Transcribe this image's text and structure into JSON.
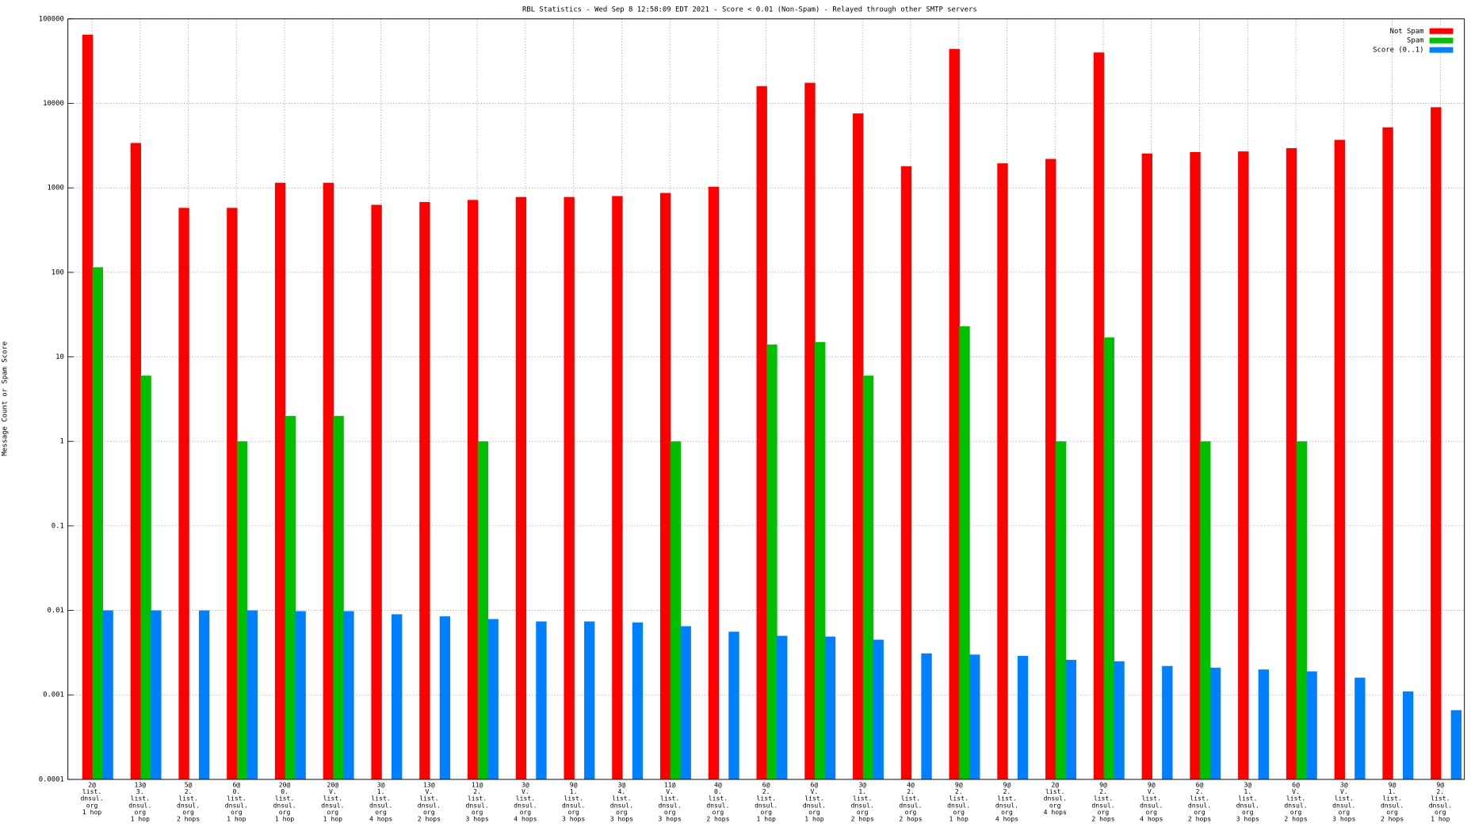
{
  "chart_data": {
    "type": "bar",
    "title": "RBL Statistics - Wed Sep  8 12:58:09 EDT 2021 - Score < 0.01 (Non-Spam) - Relayed through other SMTP servers",
    "y_label": "Message Count or Spam Score",
    "yscale": "log",
    "grid": true,
    "legend": "upper right",
    "ylim": [
      0.0001,
      100000
    ],
    "yticks": [
      100000,
      10000,
      1000,
      100,
      10,
      1,
      0.1,
      0.01,
      0.001,
      0.0001
    ],
    "categories": [
      [
        "2@",
        "list.",
        "dnsul.",
        "org",
        "1 hop"
      ],
      [
        "13@",
        "3.",
        "list.",
        "dnsul.",
        "org",
        "1 hop"
      ],
      [
        "5@",
        "2.",
        "list.",
        "dnsul.",
        "org",
        "2 hops"
      ],
      [
        "6@",
        "0.",
        "list.",
        "dnsul.",
        "org",
        "1 hop"
      ],
      [
        "20@",
        "0.",
        "list.",
        "dnsul.",
        "org",
        "1 hop"
      ],
      [
        "20@",
        "V.",
        "list.",
        "dnsul.",
        "org",
        "1 hop"
      ],
      [
        "3@",
        "1.",
        "list.",
        "dnsul.",
        "org",
        "4 hops"
      ],
      [
        "13@",
        "V.",
        "list.",
        "dnsul.",
        "org",
        "2 hops"
      ],
      [
        "11@",
        "2.",
        "list.",
        "dnsul.",
        "org",
        "3 hops"
      ],
      [
        "3@",
        "V.",
        "list.",
        "dnsul.",
        "org",
        "4 hops"
      ],
      [
        "9@",
        "1.",
        "list.",
        "dnsul.",
        "org",
        "3 hops"
      ],
      [
        "3@",
        "4.",
        "list.",
        "dnsul.",
        "org",
        "3 hops"
      ],
      [
        "11@",
        "V.",
        "list.",
        "dnsul.",
        "org",
        "3 hops"
      ],
      [
        "4@",
        "0.",
        "list.",
        "dnsul.",
        "org",
        "2 hops"
      ],
      [
        "6@",
        "2.",
        "list.",
        "dnsul.",
        "org",
        "1 hop"
      ],
      [
        "6@",
        "V.",
        "list.",
        "dnsul.",
        "org",
        "1 hop"
      ],
      [
        "3@",
        "1.",
        "list.",
        "dnsul.",
        "org",
        "2 hops"
      ],
      [
        "4@",
        "2.",
        "list.",
        "dnsul.",
        "org",
        "2 hops"
      ],
      [
        "9@",
        "2.",
        "list.",
        "dnsul.",
        "org",
        "1 hop"
      ],
      [
        "9@",
        "2.",
        "list.",
        "dnsul.",
        "org",
        "4 hops"
      ],
      [
        "2@",
        "list.",
        "dnsul.",
        "org",
        "4 hops"
      ],
      [
        "9@",
        "2.",
        "list.",
        "dnsul.",
        "org",
        "2 hops"
      ],
      [
        "9@",
        "V.",
        "list.",
        "dnsul.",
        "org",
        "4 hops"
      ],
      [
        "6@",
        "2.",
        "list.",
        "dnsul.",
        "org",
        "2 hops"
      ],
      [
        "3@",
        "1.",
        "list.",
        "dnsul.",
        "org",
        "3 hops"
      ],
      [
        "6@",
        "V.",
        "list.",
        "dnsul.",
        "org",
        "2 hops"
      ],
      [
        "3@",
        "V.",
        "list.",
        "dnsul.",
        "org",
        "3 hops"
      ],
      [
        "9@",
        "1.",
        "list.",
        "dnsul.",
        "org",
        "2 hops"
      ],
      [
        "9@",
        "2.",
        "list.",
        "dnsul.",
        "org",
        "1 hop"
      ]
    ],
    "series": [
      {
        "name": "Not Spam",
        "color": "#ff0000",
        "values": [
          65000,
          3400,
          580,
          580,
          1150,
          1150,
          630,
          680,
          720,
          780,
          780,
          800,
          870,
          1030,
          16000,
          17500,
          7600,
          1800,
          44000,
          1950,
          2200,
          40000,
          2550,
          2650,
          2700,
          2950,
          3700,
          5200,
          9000
        ]
      },
      {
        "name": "Spam",
        "color": "#00c000",
        "values": [
          115,
          6,
          null,
          1,
          2,
          2,
          null,
          null,
          1,
          null,
          null,
          null,
          1,
          null,
          14,
          15,
          6,
          null,
          23,
          null,
          1,
          17,
          null,
          1,
          null,
          1,
          null,
          null,
          null
        ]
      },
      {
        "name": "Score (0..1)",
        "color": "#0080ff",
        "values": [
          0.01,
          0.01,
          0.01,
          0.01,
          0.0098,
          0.0098,
          0.009,
          0.0085,
          0.0079,
          0.0074,
          0.0074,
          0.0072,
          0.0065,
          0.0056,
          0.005,
          0.0049,
          0.0045,
          0.0031,
          0.003,
          0.0029,
          0.0026,
          0.0025,
          0.0022,
          0.0021,
          0.002,
          0.0019,
          0.0016,
          0.0011,
          0.00066
        ]
      }
    ]
  }
}
